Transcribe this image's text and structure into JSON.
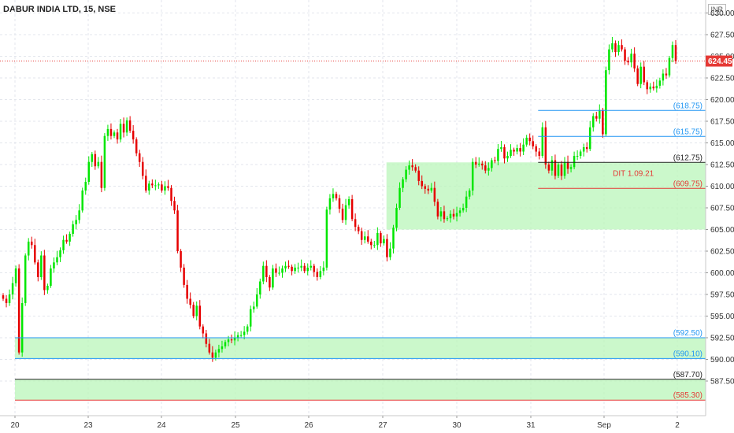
{
  "header": {
    "title": "DABUR INDIA LTD, 15, NSE",
    "currency": "INR"
  },
  "chart_data": {
    "type": "candlestick",
    "symbol": "DABUR INDIA LTD",
    "interval": "15",
    "exchange": "NSE",
    "last_price": "624.45",
    "ylim": [
      583.5,
      631.5
    ],
    "y_ticks": [
      "587.50",
      "590.00",
      "592.50",
      "595.00",
      "597.50",
      "600.00",
      "602.50",
      "605.00",
      "607.50",
      "610.00",
      "612.50",
      "615.00",
      "617.50",
      "620.00",
      "622.50",
      "625.00",
      "627.50",
      "630.00"
    ],
    "x_ticks": [
      "20",
      "23",
      "24",
      "25",
      "26",
      "27",
      "30",
      "31",
      "Sep",
      "2"
    ],
    "grid": true,
    "zones": [
      {
        "x_from": 0.0,
        "y_low": 590.1,
        "y_high": 592.5
      },
      {
        "x_from": 0.0,
        "y_low": 585.3,
        "y_high": 587.7
      },
      {
        "x_from": 5.05,
        "y_low": 605.0,
        "y_high": 612.75
      }
    ],
    "levels": [
      {
        "value": 618.75,
        "label": "(618.75)",
        "x_from": 7.1,
        "color": "#2196f3"
      },
      {
        "value": 615.75,
        "label": "(615.75)",
        "x_from": 7.1,
        "color": "#2196f3"
      },
      {
        "value": 612.75,
        "label": "(612.75)",
        "x_from": 7.1,
        "color": "#222222"
      },
      {
        "value": 609.75,
        "label": "(609.75)",
        "x_from": 7.1,
        "color": "#e53935"
      },
      {
        "value": 592.5,
        "label": "(592.50)",
        "x_from": 0.0,
        "color": "#2196f3"
      },
      {
        "value": 590.1,
        "label": "(590.10)",
        "x_from": 0.0,
        "color": "#2196f3"
      },
      {
        "value": 587.7,
        "label": "(587.70)",
        "x_from": 0.0,
        "color": "#222222"
      },
      {
        "value": 585.3,
        "label": "(585.30)",
        "x_from": 0.0,
        "color": "#e53935"
      }
    ],
    "annotations": [
      {
        "text": "DIT 1.09.21",
        "x": 8.4,
        "y": 611.2,
        "color": "#e53935"
      }
    ],
    "colors": {
      "up": "#00e600",
      "down": "#e60000",
      "zone": "#b9f5b9",
      "last_price": "#e53935"
    },
    "closes": [
      597.0,
      596.5,
      597.5,
      598.8,
      600.5,
      590.8,
      596.5,
      602.0,
      603.6,
      603.2,
      601.2,
      599.5,
      602.0,
      598.0,
      598.5,
      600.5,
      601.2,
      601.8,
      602.6,
      603.8,
      603.6,
      604.5,
      605.6,
      606.1,
      607.2,
      609.5,
      610.5,
      612.8,
      613.7,
      612.3,
      612.8,
      609.8,
      615.8,
      616.6,
      615.8,
      616.2,
      615.4,
      617.2,
      616.2,
      617.6,
      616.4,
      615.4,
      613.8,
      612.8,
      611.2,
      609.5,
      610.3,
      610.1,
      610.1,
      610.2,
      609.5,
      610.0,
      609.8,
      608.3,
      607.2,
      602.5,
      600.6,
      598.6,
      597.0,
      596.3,
      595.0,
      596.2,
      593.8,
      593.0,
      591.8,
      590.8,
      590.2,
      590.8,
      591.2,
      591.5,
      592.0,
      592.3,
      592.2,
      592.5,
      592.8,
      592.8,
      593.2,
      593.8,
      595.8,
      596.1,
      597.5,
      599.0,
      600.8,
      599.5,
      598.3,
      600.5,
      600.0,
      600.0,
      600.5,
      600.8,
      600.7,
      600.2,
      600.6,
      600.6,
      600.8,
      600.2,
      600.6,
      600.8,
      600.1,
      599.5,
      600.2,
      600.6,
      607.3,
      608.6,
      609.1,
      608.6,
      607.4,
      606.1,
      607.8,
      608.5,
      606.2,
      605.3,
      604.8,
      603.8,
      604.2,
      603.6,
      603.2,
      603.2,
      604.6,
      603.4,
      603.9,
      601.8,
      602.8,
      605.2,
      607.5,
      609.8,
      610.8,
      611.9,
      612.4,
      612.2,
      611.8,
      610.6,
      610.0,
      609.7,
      609.5,
      609.8,
      608.2,
      606.5,
      607.1,
      606.2,
      606.3,
      606.8,
      606.5,
      606.9,
      607.2,
      607.5,
      608.8,
      609.5,
      612.8,
      612.5,
      612.6,
      612.4,
      611.8,
      612.1,
      613.0,
      612.9,
      614.3,
      614.5,
      613.2,
      613.5,
      614.2,
      614.0,
      614.4,
      614.0,
      614.8,
      615.6,
      615.2,
      614.6,
      614.0,
      613.5,
      616.8,
      612.5,
      611.8,
      613.0,
      611.2,
      612.5,
      611.2,
      612.8,
      612.0,
      612.2,
      613.5,
      613.5,
      614.0,
      614.5,
      614.3,
      616.8,
      618.1,
      617.8,
      618.8,
      616.0,
      623.4,
      625.8,
      626.5,
      625.5,
      626.3,
      625.8,
      624.5,
      624.3,
      625.3,
      623.6,
      621.8,
      623.8,
      622.0,
      621.2,
      621.5,
      621.3,
      621.6,
      622.2,
      623.0,
      622.8,
      624.8,
      626.3,
      624.45
    ]
  }
}
